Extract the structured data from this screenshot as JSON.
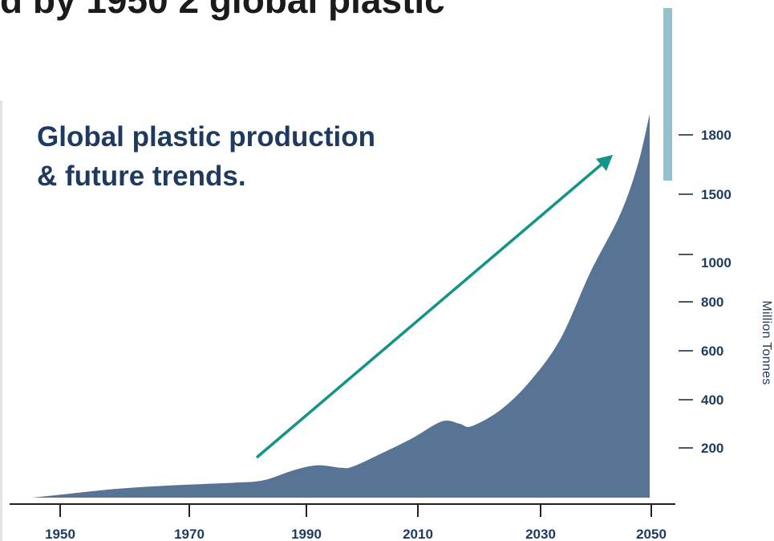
{
  "header": {
    "partial_heading": "d by 1950 2 global plastic"
  },
  "colors": {
    "area": "#587495",
    "arrow": "#139486",
    "text": "#1e3a5f",
    "accent_bar": "#93c2cf",
    "axis": "#222222"
  },
  "chart_data": {
    "type": "area",
    "title": "Global plastic production & future trends.",
    "title_lines": [
      "Global plastic production",
      "& future trends."
    ],
    "xlabel": "",
    "ylabel": "Million Tonnes",
    "x_ticks": [
      "1950",
      "1970",
      "1990",
      "2010",
      "2030",
      "2050"
    ],
    "y_ticks": [
      200,
      400,
      600,
      800,
      1000,
      1500,
      1800
    ],
    "y_tick_labels": [
      "200",
      "400",
      "600",
      "800",
      "1000",
      "1500",
      "1800"
    ],
    "grid": false,
    "annotation": "upward trend arrow",
    "series": [
      {
        "x": [
          1946,
          1950,
          1960,
          1970,
          1980,
          1985,
          1990,
          1994,
          1998,
          2000,
          2005,
          2010,
          2015,
          2018,
          2020,
          2025,
          2030,
          2035,
          2040,
          2045,
          2048,
          2050
        ],
        "y": [
          0,
          10,
          35,
          50,
          60,
          70,
          110,
          130,
          120,
          125,
          180,
          240,
          310,
          300,
          290,
          360,
          480,
          650,
          950,
          1350,
          1650,
          1900
        ]
      }
    ]
  }
}
